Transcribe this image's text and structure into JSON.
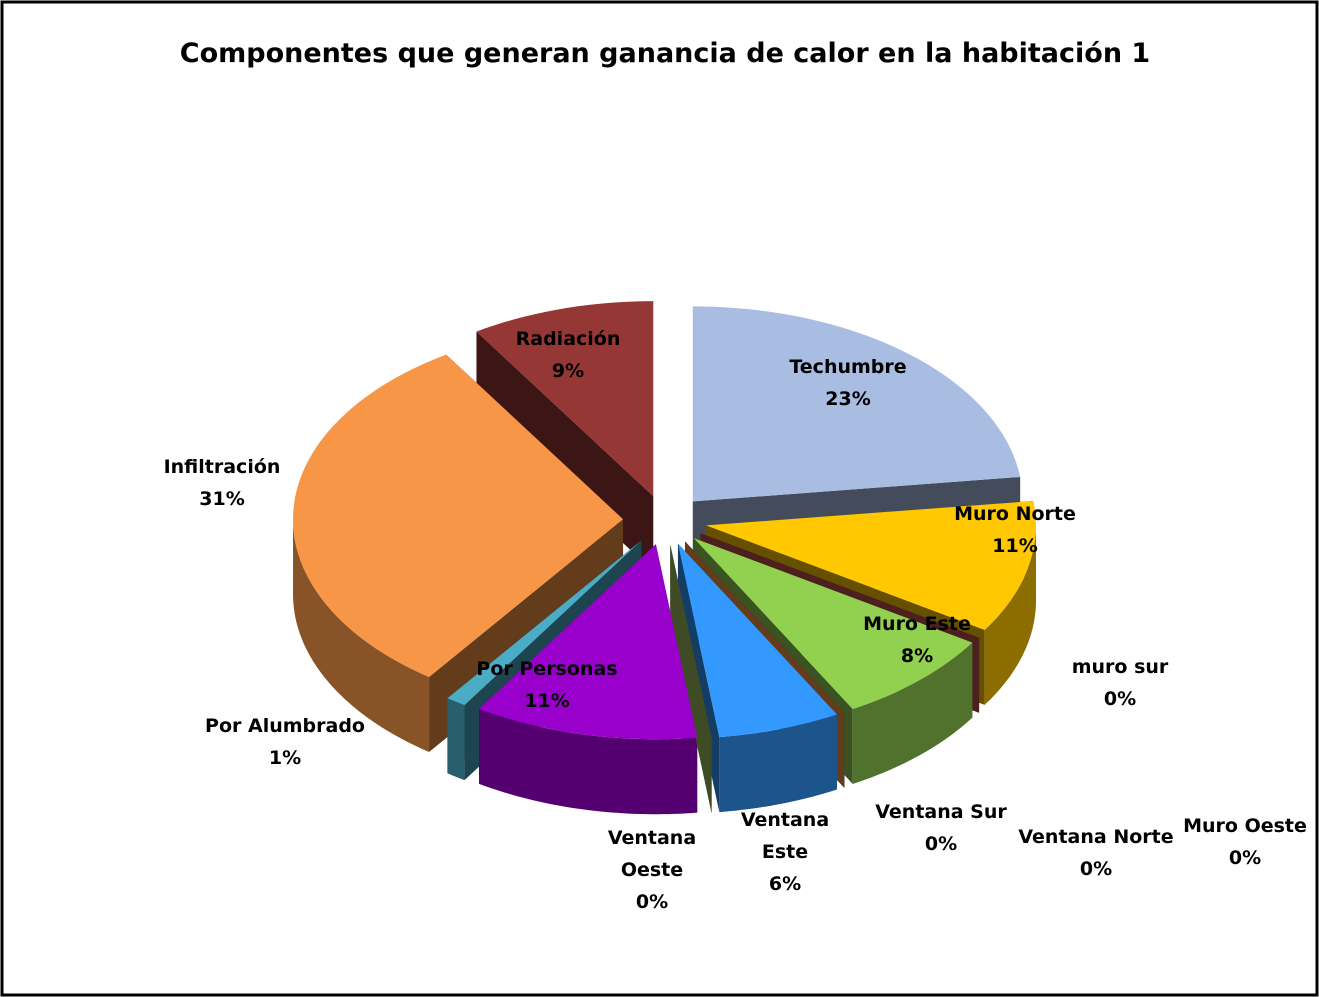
{
  "chart_data": {
    "type": "pie3d",
    "title": "Componentes que generan ganancia de calor en la habitación 1",
    "categories": [
      "Techumbre",
      "Muro Norte",
      "muro sur",
      "Muro Este",
      "Ventana Sur",
      "Ventana Norte",
      "Muro Oeste",
      "Ventana Este",
      "Ventana Oeste",
      "Por Personas",
      "Por Alumbrado",
      "Infiltración",
      "Radiación"
    ],
    "values": [
      23,
      11,
      0,
      8,
      0,
      0,
      0,
      6,
      0,
      11,
      1,
      31,
      9
    ],
    "value_labels": [
      "23%",
      "11%",
      "0%",
      "8%",
      "0%",
      "0%",
      "0%",
      "6%",
      "0%",
      "11%",
      "1%",
      "31%",
      "9%"
    ],
    "colors": [
      "#a9bde3",
      "#ffc800",
      "#c0504d",
      "#92d050",
      "#8064a2",
      "#4f81bd",
      "#f79646",
      "#3399ff",
      "#9bbb59",
      "#9900cc",
      "#4bacc6",
      "#f79646",
      "#953735"
    ]
  }
}
